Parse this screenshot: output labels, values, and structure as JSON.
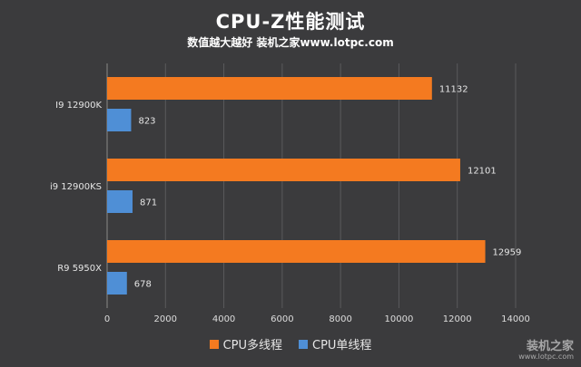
{
  "header": {
    "title": "CPU-Z性能测试",
    "subtitle": "数值越大越好 装机之家www.lotpc.com"
  },
  "watermark": {
    "text": "装机之家",
    "url": "www.lotpc.com"
  },
  "colors": {
    "background": "#3b3b3d",
    "multi": "#f47a20",
    "single": "#4f8fd6"
  },
  "chart_data": {
    "type": "bar",
    "orientation": "horizontal",
    "title": "CPU-Z性能测试",
    "subtitle": "数值越大越好 装机之家www.lotpc.com",
    "categories": [
      "I9 12900K",
      "i9 12900KS",
      "R9 5950X"
    ],
    "series": [
      {
        "name": "CPU多线程",
        "values": [
          11132,
          12101,
          12959
        ]
      },
      {
        "name": "CPU单线程",
        "values": [
          823,
          871,
          678
        ]
      }
    ],
    "xlim": [
      0,
      14000
    ],
    "xticks": [
      0,
      2000,
      4000,
      6000,
      8000,
      10000,
      12000,
      14000
    ],
    "grid": true,
    "legend_position": "bottom"
  }
}
